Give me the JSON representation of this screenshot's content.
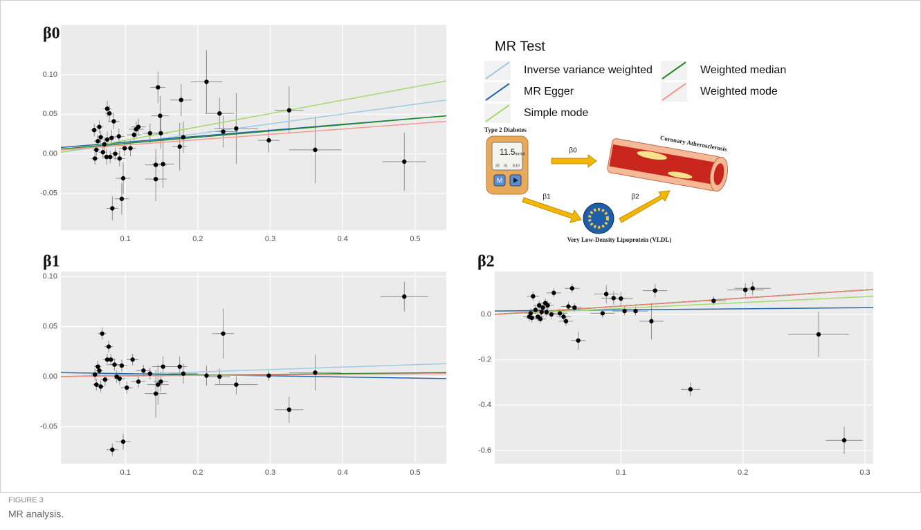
{
  "chart_data": [
    {
      "type": "scatter",
      "title": "β0",
      "legend_title": "MR Test",
      "xlim": [
        0.011,
        0.543
      ],
      "ylim": [
        -0.0965,
        0.163
      ],
      "xticks": [
        0.1,
        0.2,
        0.3,
        0.4,
        0.5
      ],
      "yticks": [
        -0.05,
        {
          "value": 0,
          "label": "0.00"
        },
        0.05,
        {
          "value": 0.1,
          "label": "0.10"
        }
      ],
      "grid": true,
      "x": [
        0.485,
        0.362,
        0.326,
        0.298,
        0.253,
        0.235,
        0.23,
        0.212,
        0.18,
        0.177,
        0.175,
        0.152,
        0.149,
        0.148,
        0.145,
        0.142,
        0.142,
        0.134,
        0.118,
        0.115,
        0.112,
        0.107,
        0.099,
        0.097,
        0.095,
        0.092,
        0.091,
        0.084,
        0.082,
        0.081,
        0.078,
        0.075,
        0.075,
        0.074,
        0.071,
        0.069,
        0.066,
        0.064,
        0.062,
        0.06,
        0.058,
        0.057,
        0.079,
        0.086
      ],
      "y": [
        -0.01,
        0.005,
        0.055,
        0.017,
        0.032,
        0.028,
        0.051,
        0.091,
        0.021,
        0.068,
        0.009,
        -0.013,
        0.026,
        0.048,
        0.084,
        -0.014,
        -0.032,
        0.026,
        0.034,
        0.031,
        0.024,
        0.007,
        0.007,
        -0.031,
        -0.057,
        -0.006,
        0.022,
        0.041,
        -0.069,
        0.02,
        0.051,
        0.057,
        0.018,
        -0.004,
        0.012,
        0.002,
        0.021,
        0.034,
        0.016,
        0.005,
        -0.006,
        0.03,
        -0.004,
        0.0
      ],
      "xerr": [
        0.03,
        0.036,
        0.02,
        0.015,
        0.03,
        0.02,
        0.02,
        0.022,
        0.02,
        0.015,
        0.01,
        0.015,
        0.01,
        0.012,
        0.01,
        0.015,
        0.015,
        0.01,
        0.01,
        0.01,
        0.01,
        0.008,
        0.008,
        0.01,
        0.01,
        0.008,
        0.008,
        0.008,
        0.008,
        0.006,
        0.006,
        0.006,
        0.006,
        0.006,
        0.006,
        0.006,
        0.005,
        0.005,
        0.005,
        0.005,
        0.005,
        0.005,
        0.006,
        0.006
      ],
      "yerr": [
        0.037,
        0.042,
        0.03,
        0.015,
        0.045,
        0.02,
        0.02,
        0.04,
        0.02,
        0.02,
        0.03,
        0.03,
        0.02,
        0.025,
        0.02,
        0.02,
        0.028,
        0.012,
        0.01,
        0.01,
        0.01,
        0.01,
        0.01,
        0.02,
        0.02,
        0.01,
        0.01,
        0.01,
        0.015,
        0.01,
        0.01,
        0.01,
        0.01,
        0.01,
        0.008,
        0.008,
        0.008,
        0.008,
        0.008,
        0.008,
        0.008,
        0.008,
        0.008,
        0.008
      ],
      "series": [
        {
          "name": "Inverse variance weighted",
          "color": "#9ecae1",
          "values": [
            0.002,
            0.068
          ]
        },
        {
          "name": "MR Egger",
          "color": "#2166ac",
          "values": [
            0.008,
            0.048
          ]
        },
        {
          "name": "Simple mode",
          "color": "#a6d96a",
          "values": [
            0.002,
            0.092
          ]
        },
        {
          "name": "Weighted median",
          "color": "#238b23",
          "values": [
            0.006,
            0.048
          ]
        },
        {
          "name": "Weighted mode",
          "color": "#f4978e",
          "values": [
            0.005,
            0.041
          ]
        }
      ]
    },
    {
      "type": "scatter",
      "title": "β1",
      "xlim": [
        0.011,
        0.543
      ],
      "ylim": [
        -0.087,
        0.105
      ],
      "xticks": [
        0.1,
        0.2,
        0.3,
        0.4,
        0.5
      ],
      "yticks": [
        -0.05,
        {
          "value": 0,
          "label": "0.00"
        },
        0.05,
        {
          "value": 0.1,
          "label": "0.10"
        }
      ],
      "grid": true,
      "x": [
        0.485,
        0.362,
        0.326,
        0.298,
        0.253,
        0.235,
        0.23,
        0.212,
        0.18,
        0.175,
        0.152,
        0.149,
        0.145,
        0.142,
        0.134,
        0.125,
        0.118,
        0.11,
        0.102,
        0.097,
        0.095,
        0.092,
        0.085,
        0.082,
        0.08,
        0.077,
        0.075,
        0.072,
        0.068,
        0.066,
        0.064,
        0.062,
        0.06,
        0.058,
        0.088
      ],
      "y": [
        0.08,
        0.004,
        -0.033,
        0.001,
        -0.008,
        0.043,
        0.0,
        0.001,
        0.003,
        0.01,
        0.01,
        -0.005,
        -0.008,
        -0.017,
        0.003,
        0.006,
        -0.005,
        0.017,
        -0.011,
        -0.065,
        0.011,
        -0.002,
        0.012,
        -0.073,
        0.017,
        0.03,
        0.017,
        -0.003,
        0.043,
        -0.01,
        0.006,
        0.01,
        -0.008,
        0.002,
        0.0
      ],
      "xerr": [
        0.033,
        0.036,
        0.02,
        0.015,
        0.03,
        0.015,
        0.015,
        0.02,
        0.02,
        0.01,
        0.015,
        0.01,
        0.015,
        0.015,
        0.01,
        0.01,
        0.01,
        0.008,
        0.008,
        0.01,
        0.008,
        0.008,
        0.008,
        0.008,
        0.006,
        0.006,
        0.006,
        0.006,
        0.006,
        0.005,
        0.005,
        0.005,
        0.005,
        0.005,
        0.006
      ],
      "yerr": [
        0.015,
        0.018,
        0.013,
        0.005,
        0.01,
        0.025,
        0.008,
        0.01,
        0.01,
        0.01,
        0.01,
        0.01,
        0.02,
        0.024,
        0.006,
        0.006,
        0.006,
        0.006,
        0.006,
        0.008,
        0.006,
        0.006,
        0.006,
        0.006,
        0.006,
        0.006,
        0.006,
        0.006,
        0.006,
        0.006,
        0.006,
        0.006,
        0.006,
        0.006,
        0.006
      ],
      "series": [
        {
          "color": "#9ecae1",
          "values": [
            0.0,
            0.013
          ]
        },
        {
          "color": "#2166ac",
          "values": [
            0.004,
            -0.002
          ]
        },
        {
          "color": "#a6d96a",
          "values": [
            0.0,
            0.004
          ]
        },
        {
          "color": "#238b23",
          "values": [
            0.0,
            0.004
          ]
        },
        {
          "color": "#f4978e",
          "values": [
            0.0,
            0.003
          ]
        }
      ]
    },
    {
      "type": "scatter",
      "title": "β2",
      "xlim": [
        -0.0034,
        0.3068
      ],
      "ylim": [
        -0.658,
        0.189
      ],
      "xticks": [
        0.1,
        0.2,
        0.3
      ],
      "yticks": [
        -0.6,
        -0.4,
        -0.2,
        {
          "value": 0,
          "label": "0.0"
        }
      ],
      "grid": true,
      "x": [
        0.283,
        0.262,
        0.208,
        0.202,
        0.176,
        0.157,
        0.128,
        0.125,
        0.112,
        0.103,
        0.1,
        0.094,
        0.088,
        0.085,
        0.065,
        0.062,
        0.06,
        0.057,
        0.055,
        0.053,
        0.05,
        0.045,
        0.043,
        0.04,
        0.038,
        0.036,
        0.035,
        0.033,
        0.032,
        0.03,
        0.028,
        0.027,
        0.026,
        0.025,
        0.034,
        0.039
      ],
      "y": [
        -0.555,
        -0.088,
        0.115,
        0.108,
        0.06,
        -0.33,
        0.105,
        -0.03,
        0.015,
        0.015,
        0.07,
        0.072,
        0.09,
        0.005,
        -0.115,
        0.03,
        0.115,
        0.035,
        -0.03,
        -0.01,
        0.005,
        0.095,
        0.0,
        0.04,
        0.05,
        0.03,
        0.01,
        0.04,
        -0.01,
        0.02,
        0.08,
        -0.015,
        0.005,
        -0.01,
        -0.02,
        0.01
      ],
      "xerr": [
        0.015,
        0.025,
        0.015,
        0.015,
        0.01,
        0.008,
        0.01,
        0.01,
        0.01,
        0.01,
        0.01,
        0.01,
        0.01,
        0.01,
        0.006,
        0.006,
        0.006,
        0.006,
        0.006,
        0.006,
        0.006,
        0.006,
        0.006,
        0.005,
        0.005,
        0.005,
        0.005,
        0.005,
        0.005,
        0.005,
        0.005,
        0.005,
        0.005,
        0.005,
        0.005,
        0.005
      ],
      "yerr": [
        0.06,
        0.1,
        0.03,
        0.03,
        0.02,
        0.03,
        0.03,
        0.08,
        0.02,
        0.02,
        0.03,
        0.03,
        0.04,
        0.02,
        0.04,
        0.02,
        0.02,
        0.02,
        0.02,
        0.02,
        0.02,
        0.02,
        0.02,
        0.02,
        0.02,
        0.02,
        0.02,
        0.02,
        0.02,
        0.02,
        0.02,
        0.02,
        0.02,
        0.02,
        0.02,
        0.02
      ],
      "series": [
        {
          "color": "#9ecae1",
          "values": [
            0.0,
            0.11
          ]
        },
        {
          "color": "#2166ac",
          "values": [
            0.015,
            0.03
          ]
        },
        {
          "color": "#a6d96a",
          "values": [
            0.0,
            0.08
          ]
        },
        {
          "color": "#238b23",
          "values": [
            0.0,
            0.11
          ]
        },
        {
          "color": "#e8826e",
          "values": [
            0.0,
            0.11
          ]
        }
      ]
    }
  ],
  "diagram": {
    "exposure": "Type 2 Diabetes",
    "outcome": "Coronary Atherosclerosis",
    "mediator": "Very Low-Density Lipoprotein (VLDL)",
    "paths": [
      "β0",
      "β1",
      "β2"
    ],
    "meter": {
      "reading": "11.5",
      "unit": "mmol",
      "day": "20",
      "month": "01",
      "time": "9.10",
      "button": "M"
    }
  },
  "figure": {
    "label": "FIGURE 3",
    "caption": "MR analysis."
  }
}
